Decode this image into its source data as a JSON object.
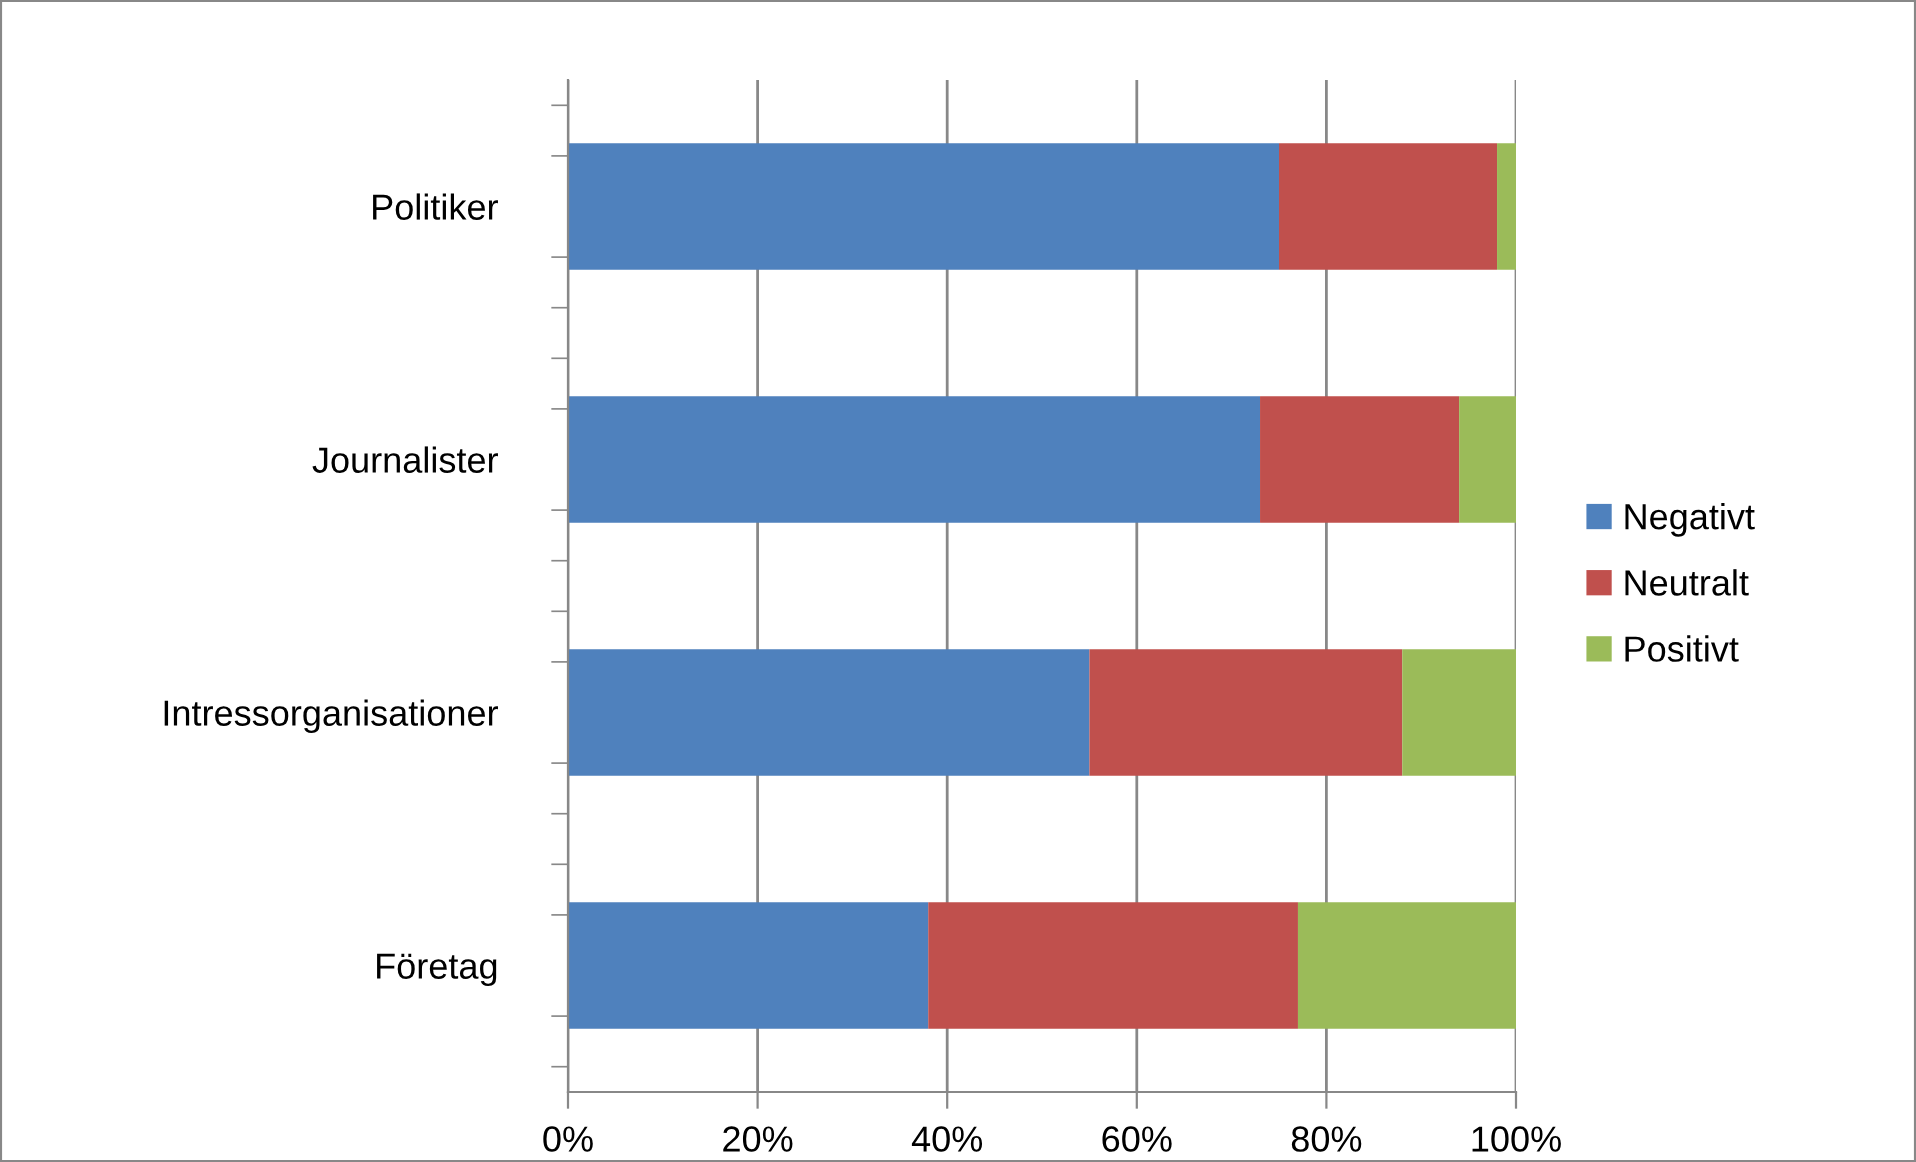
{
  "chart_data": {
    "type": "bar",
    "orientation": "horizontal",
    "stacked": true,
    "categories": [
      "Politiker",
      "Journalister",
      "Intressorganisationer",
      "Företag"
    ],
    "series": [
      {
        "name": "Negativt",
        "color": "#4f81bd",
        "values": [
          75,
          73,
          55,
          38
        ]
      },
      {
        "name": "Neutralt",
        "color": "#c0504d",
        "values": [
          23,
          21,
          33,
          39
        ]
      },
      {
        "name": "Positivt",
        "color": "#9bbb59",
        "values": [
          2,
          6,
          12,
          23
        ]
      }
    ],
    "xlim": [
      0,
      100
    ],
    "xticks": [
      {
        "value": 0,
        "label": "0%"
      },
      {
        "value": 20,
        "label": "20%"
      },
      {
        "value": 40,
        "label": "40%"
      },
      {
        "value": 60,
        "label": "60%"
      },
      {
        "value": 80,
        "label": "80%"
      },
      {
        "value": 100,
        "label": "100%"
      }
    ],
    "grid": "x",
    "legend": "right"
  }
}
